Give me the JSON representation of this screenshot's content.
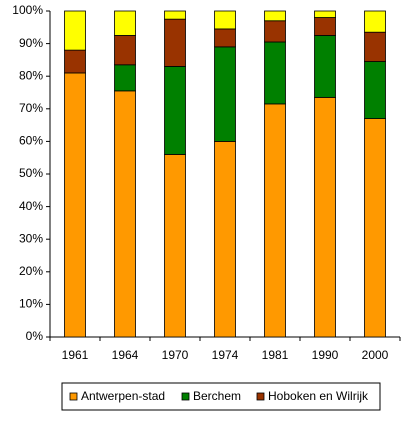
{
  "chart_data": {
    "type": "stacked-bar",
    "categories": [
      "1961",
      "1964",
      "1970",
      "1974",
      "1981",
      "1990",
      "2000"
    ],
    "series": [
      {
        "name": "Antwerpen-stad",
        "color": "#ff9900",
        "values": [
          81,
          75.5,
          56,
          60,
          71.5,
          73.5,
          67
        ]
      },
      {
        "name": "Berchem",
        "color": "#008000",
        "values": [
          0,
          8,
          27,
          29,
          19,
          19,
          17.5
        ]
      },
      {
        "name": "Hoboken en Wilrijk",
        "color": "#993300",
        "values": [
          7,
          9,
          14.5,
          5.5,
          6.5,
          5.5,
          9
        ]
      },
      {
        "color": "#ffff00",
        "values": [
          12,
          7.5,
          2.5,
          5.5,
          3,
          2,
          6.5
        ]
      }
    ],
    "ylim": [
      0,
      100
    ],
    "yticks": [
      {
        "value": 0,
        "label": "0%"
      },
      {
        "value": 10,
        "label": "10%"
      },
      {
        "value": 20,
        "label": "20%"
      },
      {
        "value": 30,
        "label": "30%"
      },
      {
        "value": 40,
        "label": "40%"
      },
      {
        "value": 50,
        "label": "50%"
      },
      {
        "value": 60,
        "label": "60%"
      },
      {
        "value": 70,
        "label": "70%"
      },
      {
        "value": 80,
        "label": "80%"
      },
      {
        "value": 90,
        "label": "90%"
      },
      {
        "value": 100,
        "label": "100%"
      }
    ],
    "legend": "bottom"
  }
}
